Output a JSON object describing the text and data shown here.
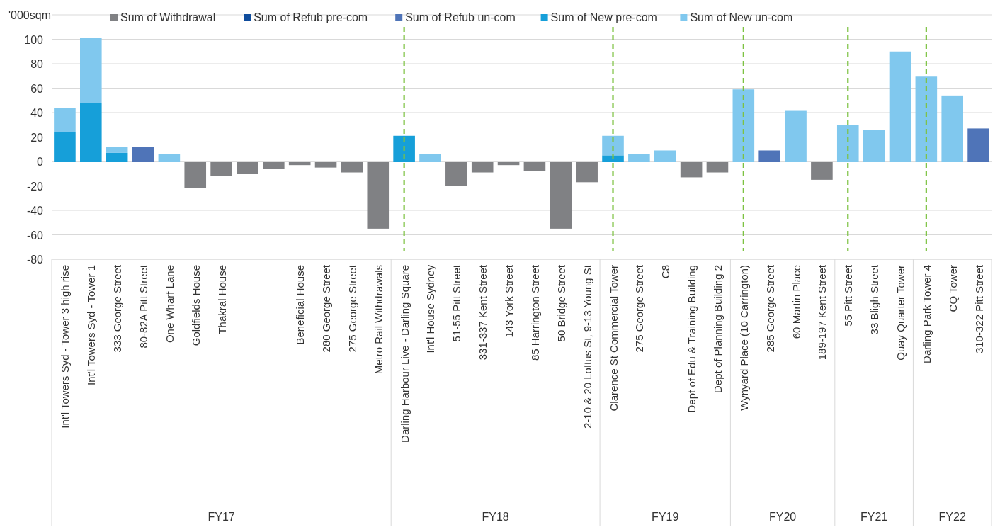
{
  "chart_data": {
    "type": "bar",
    "stacked": true,
    "ylabel": "'000sqm",
    "categories": [
      "Int'l Towers Syd - Tower 3 high rise",
      "Int'l Towers Syd - Tower 1",
      "333 George Street",
      "80-82A Pitt Street",
      "One Wharf Lane",
      "Goldfields House",
      "Thakral House",
      null,
      null,
      "Beneficial House",
      "280 George Street",
      "275 George Street",
      "Metro Rail Withdrawals",
      "Darling Harbour Live - Darling Square",
      "Int'l House Sydney",
      "51-55 Pitt Street",
      "331-337 Kent Street",
      "143 York Street",
      "85 Harrington Street",
      "50 Bridge Street",
      "2-10 & 20 Loftus St, 9-13 Young St",
      "Clarence St Commercial Tower",
      "275 George Street",
      "C8",
      "Dept of Edu & Training Building",
      "Dept of Planning Building 2",
      "Wynyard Place (10 Carrington)",
      "285 George Street",
      "60 Martin Place",
      "189-197 Kent Street",
      "55 Pitt Street",
      "33 Bligh Street",
      "Quay Quarter Tower",
      "Darling Park Tower 4",
      "CQ Tower",
      "310-322 Pitt Street"
    ],
    "series": [
      {
        "name": "Sum of Withdrawal",
        "color": "#808184",
        "values": [
          null,
          null,
          null,
          null,
          null,
          -22,
          -12,
          -10,
          -6,
          -3,
          -5,
          -9,
          -55,
          null,
          null,
          -20,
          -9,
          -3,
          -8,
          -55,
          -17,
          null,
          null,
          null,
          -13,
          -9,
          null,
          null,
          null,
          -15,
          null,
          null,
          null,
          null,
          null,
          null
        ]
      },
      {
        "name": "Sum of Refub pre-com",
        "color": "#0f4c9c",
        "values": [
          null,
          null,
          null,
          null,
          null,
          null,
          null,
          null,
          null,
          null,
          null,
          null,
          null,
          null,
          null,
          null,
          null,
          null,
          null,
          null,
          null,
          null,
          null,
          null,
          null,
          null,
          null,
          null,
          null,
          null,
          null,
          null,
          null,
          null,
          null,
          null
        ]
      },
      {
        "name": "Sum of Refub un-com",
        "color": "#4f74b8",
        "values": [
          null,
          null,
          null,
          12,
          null,
          null,
          null,
          null,
          null,
          null,
          null,
          null,
          null,
          null,
          null,
          null,
          null,
          null,
          null,
          null,
          null,
          null,
          null,
          null,
          null,
          null,
          null,
          9,
          null,
          null,
          null,
          null,
          null,
          null,
          null,
          27
        ]
      },
      {
        "name": "Sum of New pre-com",
        "color": "#169fd9",
        "values": [
          24,
          48,
          7,
          null,
          null,
          null,
          null,
          null,
          null,
          null,
          null,
          null,
          null,
          21,
          null,
          null,
          null,
          null,
          null,
          null,
          null,
          5,
          null,
          null,
          null,
          null,
          null,
          null,
          null,
          null,
          null,
          null,
          null,
          null,
          null,
          null
        ]
      },
      {
        "name": "Sum of New un-com",
        "color": "#80c8ee",
        "values": [
          20,
          53,
          5,
          null,
          6,
          null,
          null,
          null,
          null,
          null,
          null,
          null,
          null,
          null,
          6,
          null,
          null,
          null,
          null,
          null,
          null,
          16,
          6,
          9,
          null,
          null,
          59,
          null,
          42,
          null,
          30,
          26,
          90,
          70,
          54,
          null
        ]
      }
    ],
    "ylim": [
      -80,
      120
    ],
    "yticks": [
      -80,
      -60,
      -40,
      -20,
      0,
      20,
      40,
      60,
      80,
      100,
      {
        "value": 120,
        "label": null
      }
    ],
    "grid": "y",
    "legend": "top",
    "ref_lines": [
      {
        "axis": "x",
        "value": "Darling Harbour Live - Darling Square",
        "color": "#7dc242",
        "line_style": "dashed"
      },
      {
        "axis": "x",
        "value": "Clarence St Commercial Tower",
        "color": "#7dc242",
        "line_style": "dashed"
      },
      {
        "axis": "x",
        "value": "Wynyard Place (10 Carrington)",
        "color": "#7dc242",
        "line_style": "dashed"
      },
      {
        "axis": "x",
        "value": "55 Pitt Street",
        "color": "#7dc242",
        "line_style": "dashed"
      },
      {
        "axis": "x",
        "value": "Darling Park Tower 4",
        "color": "#7dc242",
        "line_style": "dashed"
      }
    ],
    "annotations": [
      "FY17",
      "FY18",
      "FY19",
      "FY20",
      "FY21",
      "FY22"
    ]
  }
}
